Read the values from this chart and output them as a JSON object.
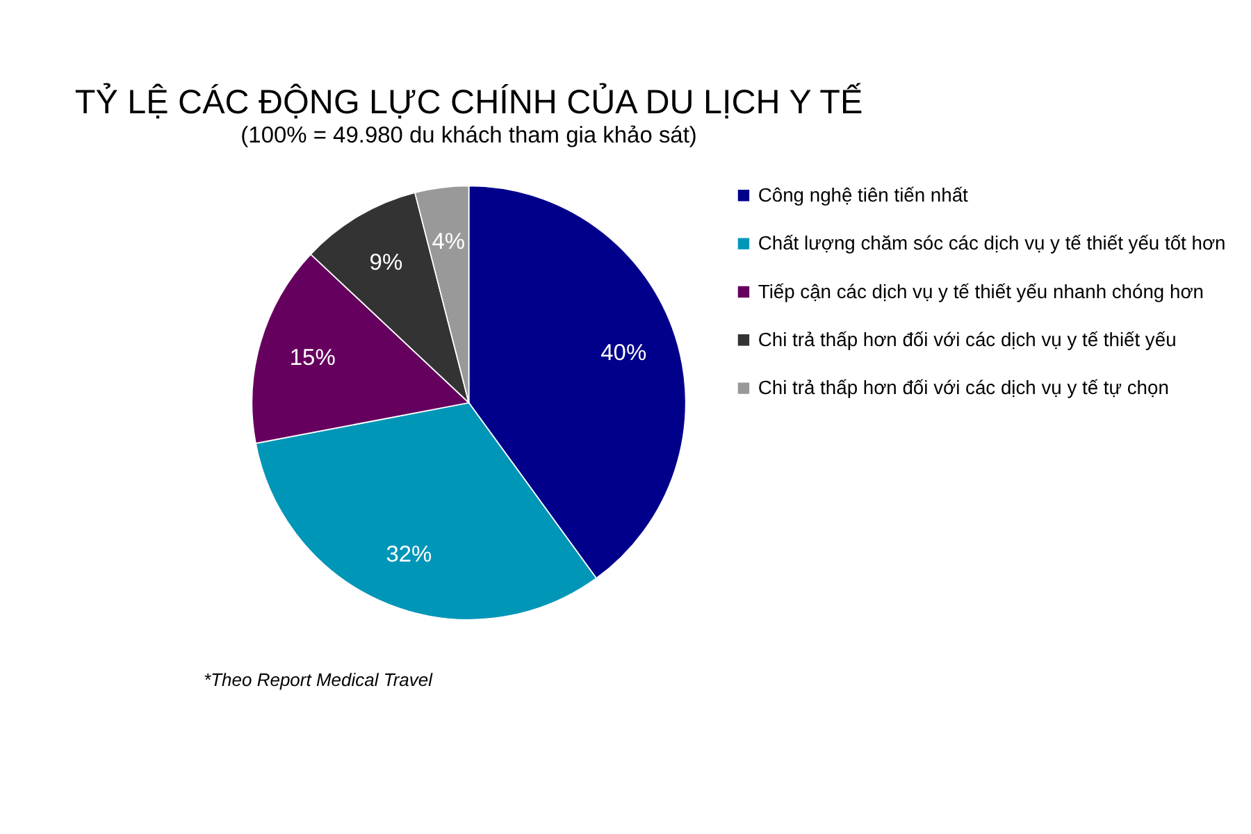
{
  "chart_data": {
    "type": "pie",
    "title": "TỶ LỆ CÁC ĐỘNG LỰC CHÍNH CỦA DU LỊCH Y TẾ",
    "subtitle": "(100% = 49.980 du khách tham gia khảo sát)",
    "categories": [
      "Công nghệ tiên tiến nhất",
      "Chất lượng chăm sóc các dịch vụ y tế thiết yếu tốt hơn",
      "Tiếp cận các dịch vụ y tế thiết yếu nhanh chóng hơn",
      "Chi trả thấp hơn đối với các dịch vụ y tế thiết yếu",
      "Chi trả thấp hơn đối với các dịch vụ y tế tự chọn"
    ],
    "values": [
      40,
      32,
      15,
      9,
      4
    ],
    "value_labels": [
      "40%",
      "32%",
      "15%",
      "9%",
      "4%"
    ],
    "colors": [
      "#00008b",
      "#0096b8",
      "#66005e",
      "#333333",
      "#999999"
    ],
    "legend": "right",
    "annotations": [
      "*Theo Report Medical Travel"
    ]
  }
}
